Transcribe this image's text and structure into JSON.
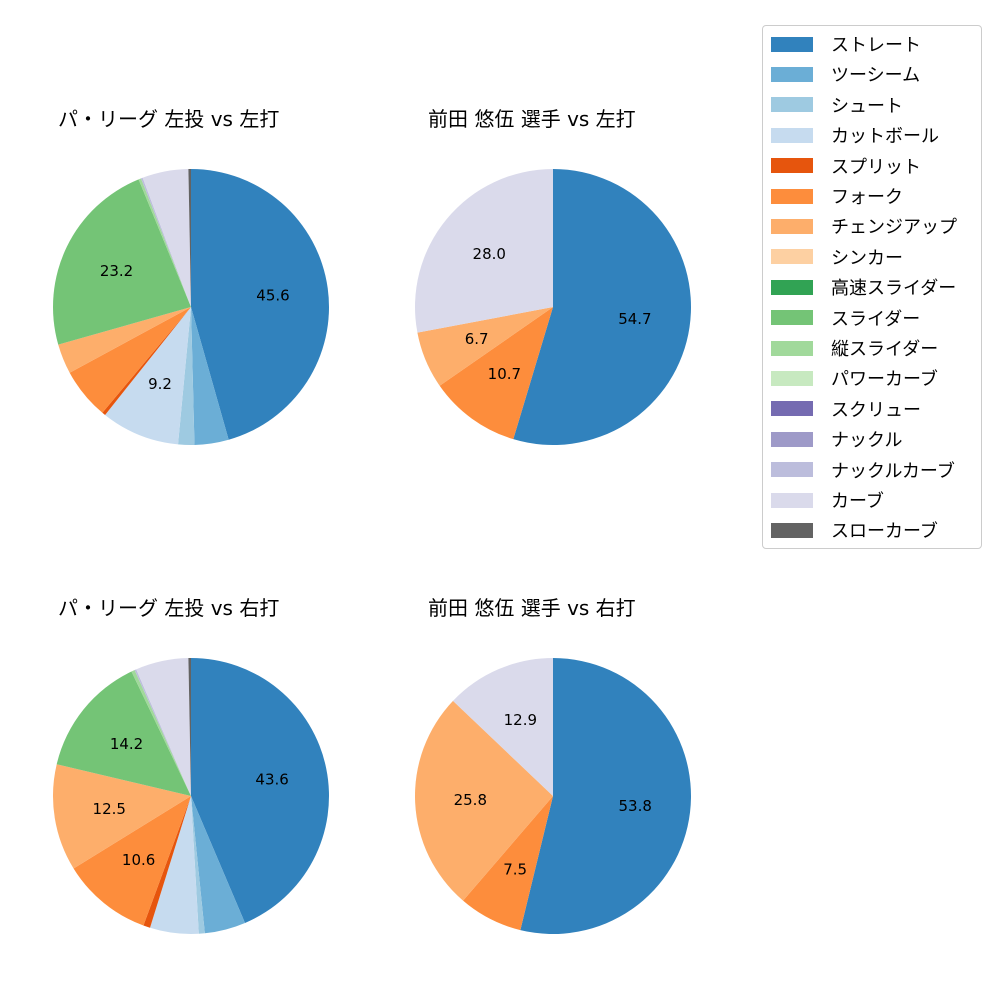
{
  "legend": {
    "items": [
      {
        "label": "ストレート",
        "color": "#3182bd"
      },
      {
        "label": "ツーシーム",
        "color": "#6baed6"
      },
      {
        "label": "シュート",
        "color": "#9ecae1"
      },
      {
        "label": "カットボール",
        "color": "#c6dbef"
      },
      {
        "label": "スプリット",
        "color": "#e6550d"
      },
      {
        "label": "フォーク",
        "color": "#fd8d3c"
      },
      {
        "label": "チェンジアップ",
        "color": "#fdae6b"
      },
      {
        "label": "シンカー",
        "color": "#fdd0a2"
      },
      {
        "label": "高速スライダー",
        "color": "#31a354"
      },
      {
        "label": "スライダー",
        "color": "#74c476"
      },
      {
        "label": "縦スライダー",
        "color": "#a1d99b"
      },
      {
        "label": "パワーカーブ",
        "color": "#c7e9c0"
      },
      {
        "label": "スクリュー",
        "color": "#756bb1"
      },
      {
        "label": "ナックル",
        "color": "#9e9ac8"
      },
      {
        "label": "ナックルカーブ",
        "color": "#bcbddc"
      },
      {
        "label": "カーブ",
        "color": "#dadaeb"
      },
      {
        "label": "スローカーブ",
        "color": "#636363"
      }
    ]
  },
  "panels": [
    {
      "title": "パ・リーグ 左投 vs 左打"
    },
    {
      "title": "前田 悠伍 選手 vs 左打"
    },
    {
      "title": "パ・リーグ 左投 vs 右打"
    },
    {
      "title": "前田 悠伍 選手 vs 右打"
    }
  ],
  "chart_data": [
    {
      "type": "pie",
      "title": "パ・リーグ 左投 vs 左打",
      "start_angle": 90,
      "direction": "clockwise",
      "categories": [
        "ストレート",
        "ツーシーム",
        "シュート",
        "カットボール",
        "スプリット",
        "フォーク",
        "チェンジアップ",
        "スライダー",
        "縦スライダー",
        "ナックルカーブ",
        "カーブ",
        "スローカーブ"
      ],
      "values": [
        45.6,
        4.0,
        1.9,
        9.2,
        0.4,
        6.0,
        3.5,
        23.2,
        0.3,
        0.2,
        5.4,
        0.3
      ],
      "labels_shown": [
        "45.6",
        "",
        "",
        "9.2",
        "",
        "",
        "",
        "23.2",
        "",
        "",
        "",
        ""
      ]
    },
    {
      "type": "pie",
      "title": "前田 悠伍 選手 vs 左打",
      "start_angle": 90,
      "direction": "clockwise",
      "categories": [
        "ストレート",
        "フォーク",
        "チェンジアップ",
        "カーブ"
      ],
      "values": [
        54.7,
        10.7,
        6.7,
        28.0
      ],
      "labels_shown": [
        "54.7",
        "10.7",
        "6.7",
        "28.0"
      ]
    },
    {
      "type": "pie",
      "title": "パ・リーグ 左投 vs 右打",
      "start_angle": 90,
      "direction": "clockwise",
      "categories": [
        "ストレート",
        "ツーシーム",
        "シュート",
        "カットボール",
        "スプリット",
        "フォーク",
        "チェンジアップ",
        "スライダー",
        "縦スライダー",
        "ナックルカーブ",
        "カーブ",
        "スローカーブ"
      ],
      "values": [
        43.6,
        4.8,
        0.7,
        5.7,
        0.8,
        10.6,
        12.5,
        14.2,
        0.4,
        0.2,
        6.2,
        0.3
      ],
      "labels_shown": [
        "43.6",
        "",
        "",
        "",
        "",
        "10.6",
        "12.5",
        "14.2",
        "",
        "",
        "",
        ""
      ]
    },
    {
      "type": "pie",
      "title": "前田 悠伍 選手 vs 右打",
      "start_angle": 90,
      "direction": "clockwise",
      "categories": [
        "ストレート",
        "フォーク",
        "チェンジアップ",
        "カーブ"
      ],
      "values": [
        53.8,
        7.5,
        25.8,
        12.9
      ],
      "labels_shown": [
        "53.8",
        "7.5",
        "25.8",
        "12.9"
      ]
    }
  ]
}
